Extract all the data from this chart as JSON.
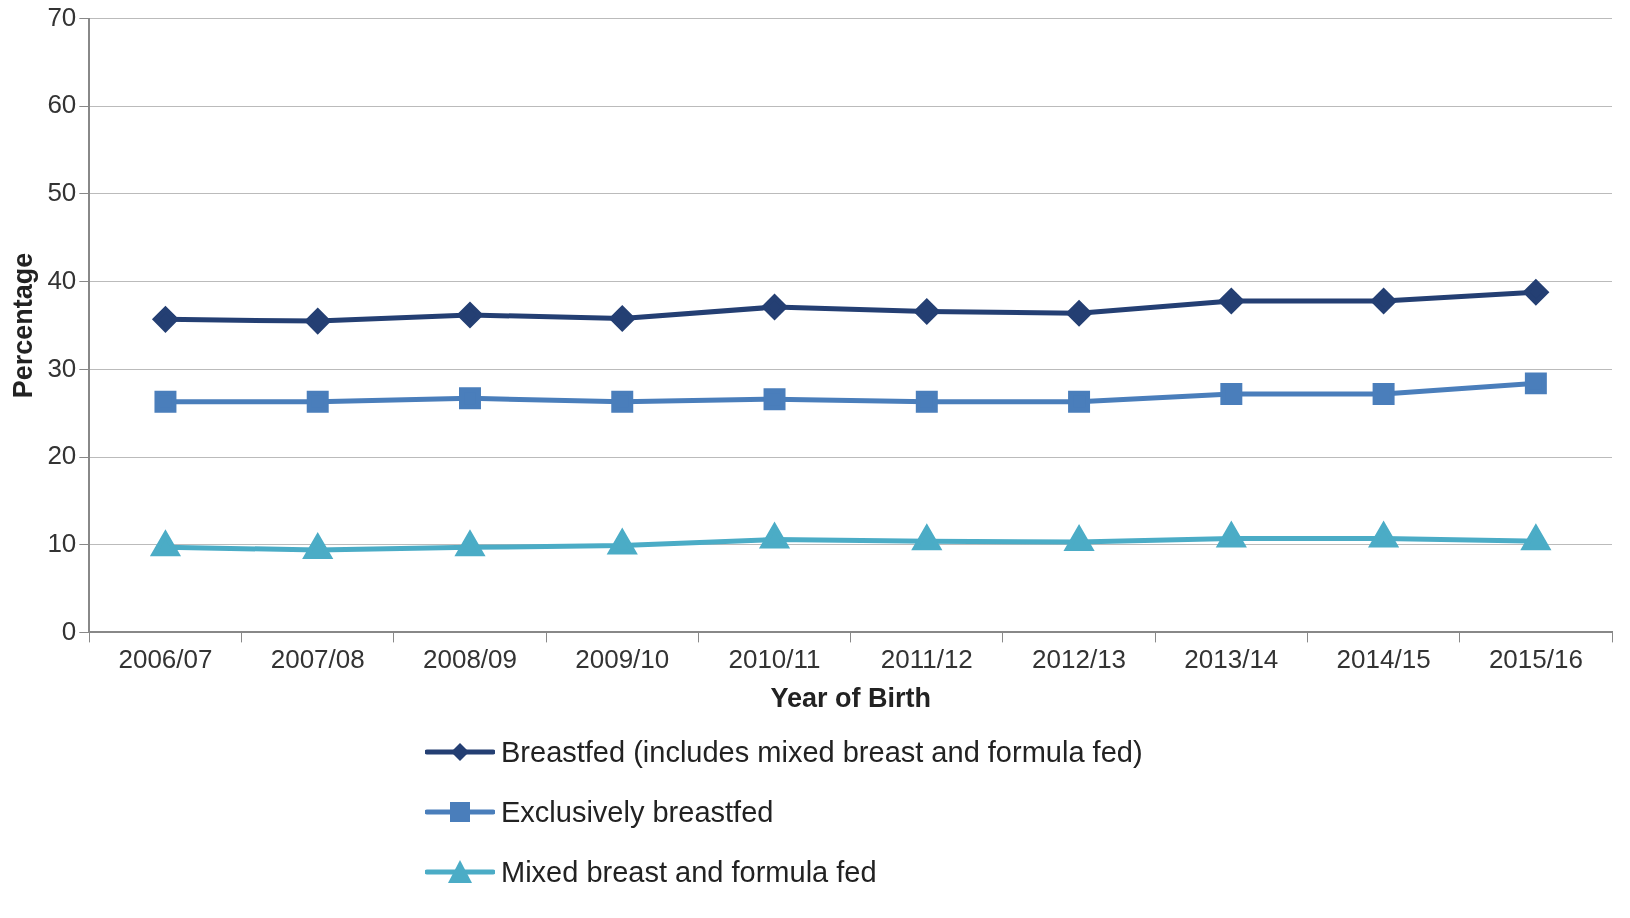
{
  "chart_data": {
    "type": "line",
    "xlabel": "Year of Birth",
    "ylabel": "Percentage",
    "categories": [
      "2006/07",
      "2007/08",
      "2008/09",
      "2009/10",
      "2010/11",
      "2011/12",
      "2012/13",
      "2013/14",
      "2014/15",
      "2015/16"
    ],
    "series": [
      {
        "name": "Breastfed (includes mixed breast and formula fed)",
        "color": "#243f73",
        "marker": "diamond",
        "values": [
          35.7,
          35.5,
          36.2,
          35.8,
          37.1,
          36.6,
          36.4,
          37.8,
          37.8,
          38.8
        ]
      },
      {
        "name": "Exclusively breastfed",
        "color": "#4a7ebb",
        "marker": "square",
        "values": [
          26.3,
          26.3,
          26.7,
          26.3,
          26.6,
          26.3,
          26.3,
          27.2,
          27.2,
          28.4
        ]
      },
      {
        "name": "Mixed breast and formula fed",
        "color": "#4bacc6",
        "marker": "triangle",
        "values": [
          9.7,
          9.4,
          9.7,
          9.9,
          10.6,
          10.4,
          10.3,
          10.7,
          10.7,
          10.4
        ]
      }
    ],
    "ylim": [
      0,
      70
    ],
    "yticks": [
      0,
      10,
      20,
      30,
      40,
      50,
      60,
      70
    ],
    "grid": "y",
    "legend": "bottom",
    "line_style": "solid"
  }
}
